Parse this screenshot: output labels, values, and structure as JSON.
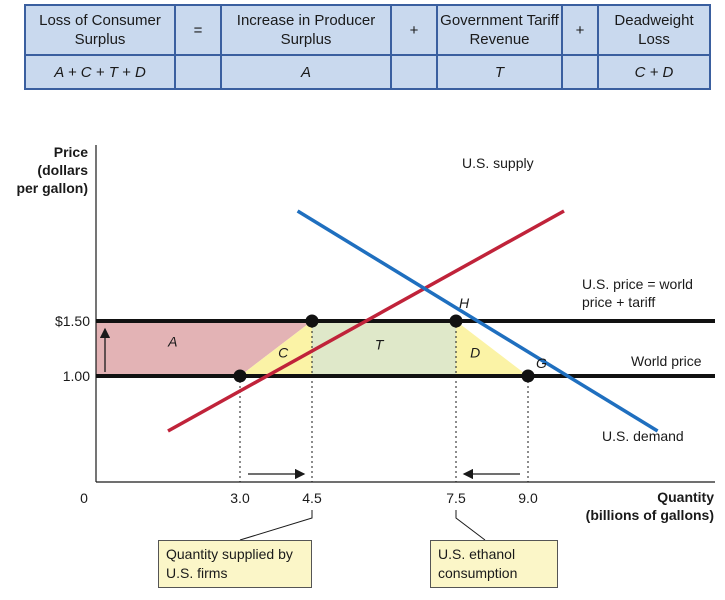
{
  "table": {
    "headers": [
      "Loss of Consumer Surplus",
      "=",
      "Increase in Producer Surplus",
      "+",
      "Government Tariff Revenue",
      "+",
      "Deadweight Loss"
    ],
    "values": [
      "A + C + T + D",
      "",
      "A",
      "",
      "T",
      "",
      "C + D"
    ]
  },
  "chart_data": {
    "type": "line",
    "ylabel": "Price (dollars per gallon)",
    "xlabel": "Quantity (billions of gallons)",
    "origin_label": "0",
    "x_ticks": [
      "3.0",
      "4.5",
      "7.5",
      "9.0"
    ],
    "y_ticks": [
      "$1.50",
      "1.00"
    ],
    "series": [
      {
        "name": "U.S. supply",
        "color": "#c0233a",
        "points": [
          [
            1.5,
            0.5
          ],
          [
            9.75,
            2.5
          ]
        ]
      },
      {
        "name": "U.S. demand",
        "color": "#1f6fbf",
        "points": [
          [
            4.2,
            2.5
          ],
          [
            11.7,
            0.5
          ]
        ]
      }
    ],
    "hlines": [
      {
        "label": "U.S. price = world price + tariff",
        "y": 1.5
      },
      {
        "label": "World price",
        "y": 1.0
      }
    ],
    "points": [
      {
        "x": 3.0,
        "y": 1.0,
        "label": ""
      },
      {
        "x": 4.5,
        "y": 1.5,
        "label": ""
      },
      {
        "x": 7.5,
        "y": 1.5,
        "label": "H"
      },
      {
        "x": 9.0,
        "y": 1.0,
        "label": "G"
      }
    ],
    "areas": [
      {
        "label": "A",
        "color": "#e3b3b5"
      },
      {
        "label": "C",
        "color": "#fbf3a6"
      },
      {
        "label": "T",
        "color": "#dfe8c9"
      },
      {
        "label": "D",
        "color": "#fbf3a6"
      }
    ],
    "callouts": [
      "Quantity supplied by U.S. firms",
      "U.S. ethanol consumption"
    ]
  }
}
